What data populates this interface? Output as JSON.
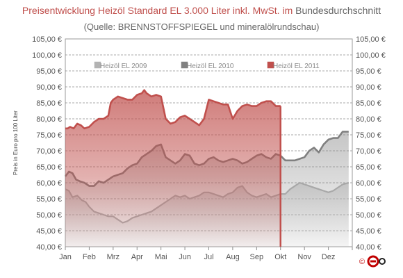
{
  "title": {
    "main": "Preisentwicklung Heizöl Standard EL 3.000 Liter inkl. MwSt. im",
    "region": "Bundesdurchschnitt"
  },
  "subtitle": "(Quelle: BRENNSTOFFSPIEGEL  und mineralölrundschau)",
  "copyright_logo": "©",
  "chart_data": {
    "type": "area",
    "ylabel": "Preis in Euro pro 100 Liter",
    "ylim": [
      40,
      105
    ],
    "y_ticks": [
      "40,00 €",
      "45,00 €",
      "50,00 €",
      "55,00 €",
      "60,00 €",
      "65,00 €",
      "70,00 €",
      "75,00 €",
      "80,00 €",
      "85,00 €",
      "90,00 €",
      "95,00 €",
      "100,00 €",
      "105,00 €"
    ],
    "y_ticks_right": true,
    "x_ticks": [
      "Jan",
      "Feb",
      "Mrz",
      "Apr",
      "Mai",
      "Jun",
      "Jul",
      "Aug",
      "Sep",
      "Okt",
      "Nov",
      "Dez"
    ],
    "grid": "horizontal dashed",
    "legend_position": "top",
    "series": [
      {
        "name": "Heizöl EL 2009",
        "color": "#b3b3b3",
        "x": [
          0,
          0.15,
          0.3,
          0.5,
          0.7,
          0.85,
          1.0,
          1.2,
          1.4,
          1.6,
          1.8,
          2.0,
          2.2,
          2.4,
          2.6,
          2.8,
          3.0,
          3.2,
          3.4,
          3.6,
          3.8,
          4.0,
          4.2,
          4.4,
          4.6,
          4.8,
          5.0,
          5.2,
          5.4,
          5.6,
          5.8,
          6.0,
          6.2,
          6.4,
          6.6,
          6.8,
          7.0,
          7.2,
          7.4,
          7.6,
          7.8,
          8.0,
          8.2,
          8.4,
          8.6,
          8.8,
          9.0,
          9.2,
          9.4,
          9.6,
          9.8,
          10.0,
          10.2,
          10.4,
          10.6,
          10.8,
          11.0,
          11.2,
          11.4,
          11.6,
          11.85
        ],
        "values": [
          58,
          57.5,
          55.5,
          56,
          54.5,
          54,
          52.5,
          51,
          50.5,
          50,
          49.5,
          49.5,
          48.5,
          47.5,
          48,
          49,
          49.5,
          50,
          50.5,
          51,
          52,
          53,
          54,
          55,
          56,
          55.5,
          56,
          55,
          55.5,
          56,
          57,
          57,
          56.5,
          56,
          55.5,
          56.5,
          57,
          58.5,
          59,
          57,
          56,
          55.5,
          56,
          56.5,
          55.5,
          56,
          56.5,
          56.5,
          58,
          59,
          60,
          59.5,
          59,
          58.5,
          58,
          57.5,
          57,
          57.5,
          58.5,
          59.5,
          60
        ]
      },
      {
        "name": "Heizöl EL 2010",
        "color": "#808080",
        "x": [
          0,
          0.15,
          0.3,
          0.45,
          0.6,
          0.8,
          1.0,
          1.2,
          1.4,
          1.6,
          1.8,
          2.0,
          2.2,
          2.4,
          2.6,
          2.8,
          3.0,
          3.2,
          3.4,
          3.6,
          3.8,
          4.0,
          4.2,
          4.4,
          4.6,
          4.8,
          5.0,
          5.2,
          5.4,
          5.6,
          5.8,
          6.0,
          6.2,
          6.4,
          6.6,
          6.8,
          7.0,
          7.2,
          7.4,
          7.6,
          7.8,
          8.0,
          8.2,
          8.4,
          8.6,
          8.8,
          9.0,
          9.2,
          9.4,
          9.6,
          9.8,
          10.0,
          10.2,
          10.4,
          10.6,
          10.8,
          11.0,
          11.2,
          11.4,
          11.6,
          11.85
        ],
        "values": [
          62,
          63.5,
          63,
          61,
          60.5,
          60,
          59,
          59,
          60.5,
          60,
          61,
          62,
          62.5,
          63,
          64.5,
          65.5,
          66,
          68,
          69,
          70,
          71.5,
          72,
          68,
          67,
          66,
          67,
          69,
          68.5,
          66,
          65.5,
          66,
          67.5,
          68,
          67,
          66.5,
          67,
          67.5,
          67,
          66,
          66.5,
          67.5,
          68.5,
          69,
          68,
          67.5,
          69,
          68.5,
          67,
          67,
          67,
          67.5,
          68,
          70,
          71,
          69.5,
          72,
          73.5,
          74,
          74,
          76,
          76
        ]
      },
      {
        "name": "Heizöl EL 2011",
        "color": "#c0504d",
        "x": [
          0,
          0.1,
          0.2,
          0.35,
          0.5,
          0.65,
          0.8,
          1.0,
          1.2,
          1.4,
          1.6,
          1.8,
          1.9,
          2.0,
          2.2,
          2.4,
          2.6,
          2.8,
          3.0,
          3.2,
          3.3,
          3.4,
          3.6,
          3.8,
          4.0,
          4.2,
          4.4,
          4.6,
          4.8,
          5.0,
          5.2,
          5.4,
          5.6,
          5.8,
          6.0,
          6.2,
          6.4,
          6.6,
          6.8,
          7.0,
          7.2,
          7.4,
          7.6,
          7.8,
          8.0,
          8.2,
          8.4,
          8.6,
          8.8,
          9.0
        ],
        "values": [
          77,
          77,
          77.5,
          77,
          78.5,
          78,
          77,
          77.5,
          79,
          80,
          80,
          81,
          85,
          86,
          87,
          86.5,
          86,
          86,
          87.5,
          88,
          89,
          88,
          87,
          87.5,
          87,
          80,
          78.5,
          79,
          80.5,
          81,
          80,
          79,
          78,
          80,
          86,
          85.5,
          85,
          84.5,
          84.5,
          80,
          82.5,
          84,
          84.5,
          84,
          84,
          85,
          85.5,
          85.5,
          84,
          84
        ]
      }
    ]
  }
}
